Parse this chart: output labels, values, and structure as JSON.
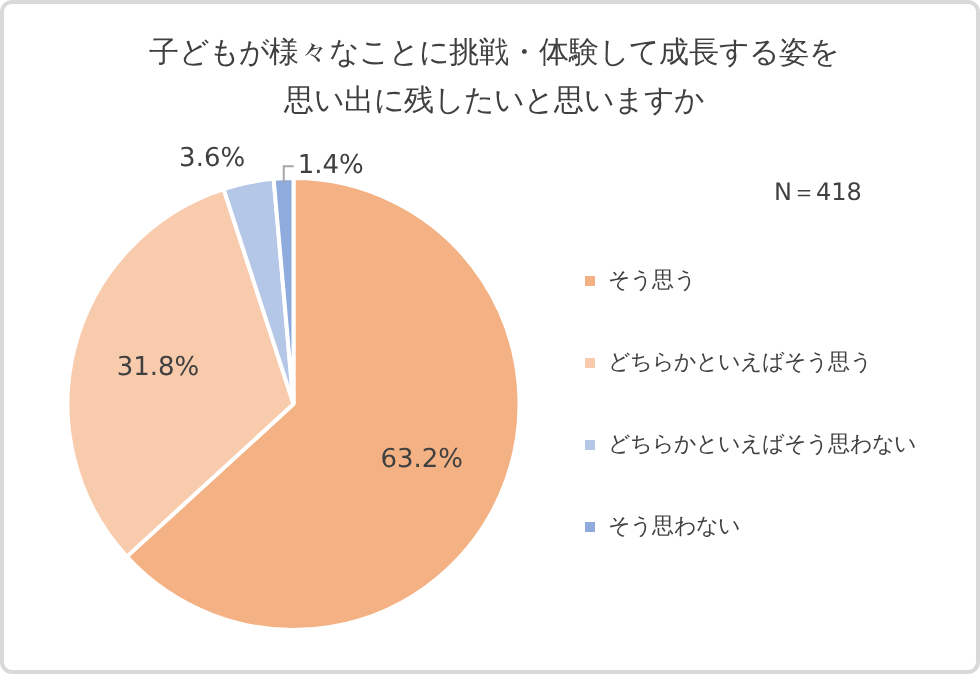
{
  "chart_data": {
    "type": "pie",
    "title": "子どもが様々なことに挑戦・体験して成長する姿を思い出に残したいと思いますか",
    "categories": [
      "そう思う",
      "どちらかといえばそう思う",
      "どちらかといえばそう思わない",
      "そう思わない"
    ],
    "values": [
      63.2,
      31.8,
      3.6,
      1.4
    ],
    "colors": [
      "#f4b183",
      "#f8cbad",
      "#b4c7e7",
      "#8faadc"
    ],
    "value_labels": [
      "63.2%",
      "31.8%",
      "3.6%",
      "1.4%"
    ],
    "annotations": [
      "N＝418"
    ],
    "legend": "right"
  }
}
